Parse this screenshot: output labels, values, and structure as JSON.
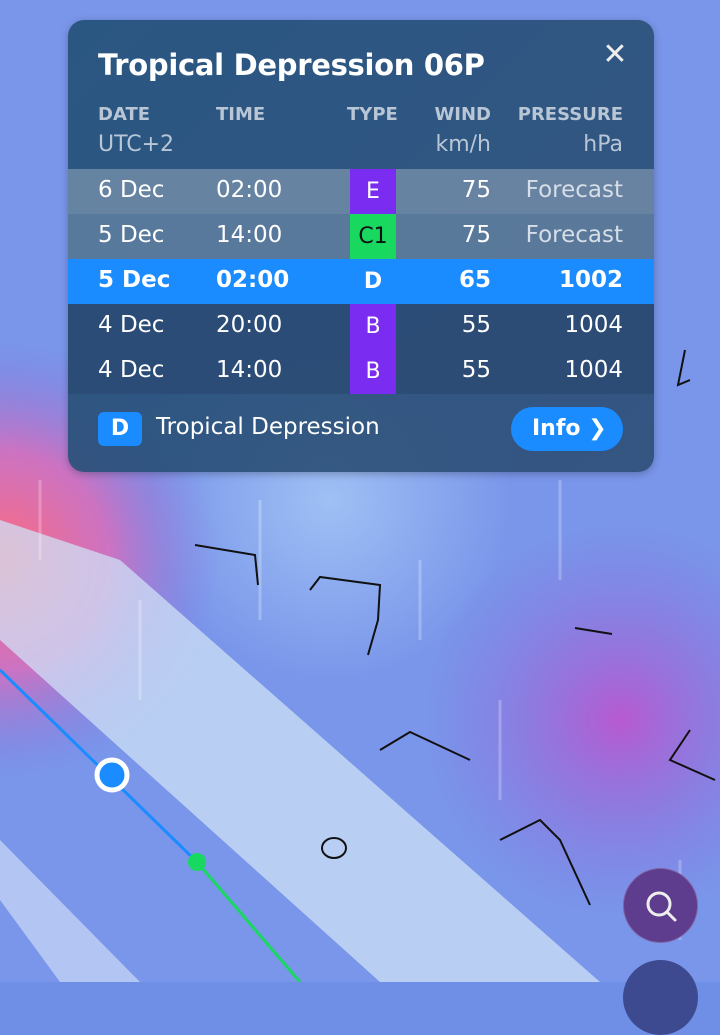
{
  "popup": {
    "title": "Tropical Depression 06P",
    "headers": {
      "date": "DATE",
      "time": "TIME",
      "type": "TYPE",
      "wind": "WIND",
      "pressure": "PRESSURE"
    },
    "units": {
      "date": "UTC+2",
      "wind": "km/h",
      "pressure": "hPa"
    },
    "rows": [
      {
        "date": "6 Dec",
        "time": "02:00",
        "type": "E",
        "wind": "75",
        "pressure": "Forecast",
        "type_color": "#7a2cf0"
      },
      {
        "date": "5 Dec",
        "time": "14:00",
        "type": "C1",
        "wind": "75",
        "pressure": "Forecast",
        "type_color": "#18d860"
      },
      {
        "date": "5 Dec",
        "time": "02:00",
        "type": "D",
        "wind": "65",
        "pressure": "1002",
        "type_color": "#1a8cff"
      },
      {
        "date": "4 Dec",
        "time": "20:00",
        "type": "B",
        "wind": "55",
        "pressure": "1004",
        "type_color": "#7a2cf0"
      },
      {
        "date": "4 Dec",
        "time": "14:00",
        "type": "B",
        "wind": "55",
        "pressure": "1004",
        "type_color": "#7a2cf0"
      }
    ],
    "selected_row": 2,
    "legend": {
      "code": "D",
      "label": "Tropical Depression"
    },
    "info_label": "Info"
  },
  "icons": {
    "close": "close-icon",
    "search": "search-icon",
    "info_chevron": "chevron-right-icon"
  }
}
